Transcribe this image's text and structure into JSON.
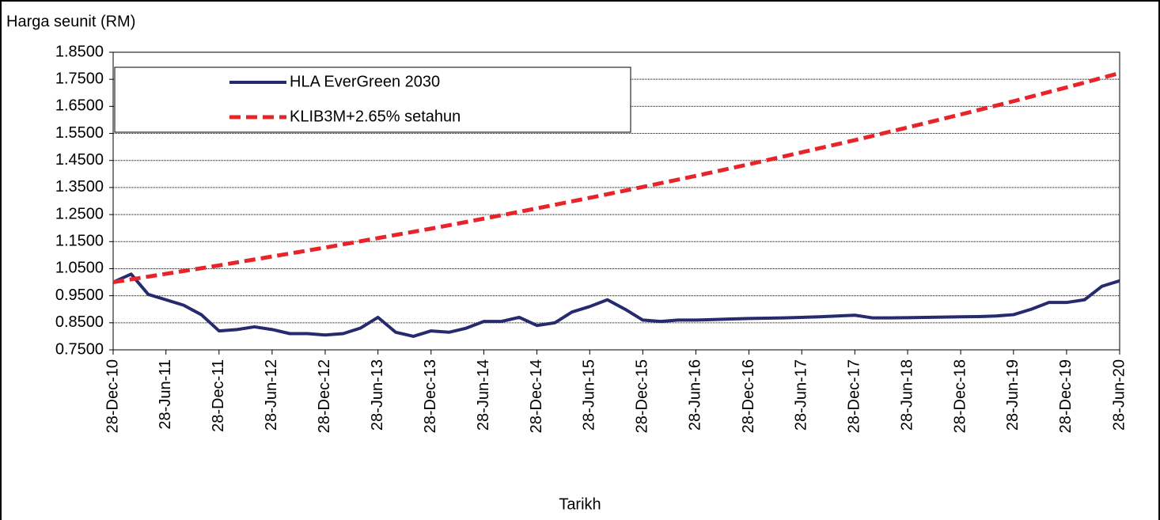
{
  "chart_data": {
    "type": "line",
    "ylabel": "Harga seunit (RM)",
    "xlabel": "Tarikh",
    "xlim": [
      "2010-12-28",
      "2020-06-28"
    ],
    "xticks": [
      {
        "value": "2010-12-28",
        "label": "28-Dec-10"
      },
      {
        "value": "2011-06-28",
        "label": "28-Jun-11"
      },
      {
        "value": "2011-12-28",
        "label": "28-Dec-11"
      },
      {
        "value": "2012-06-28",
        "label": "28-Jun-12"
      },
      {
        "value": "2012-12-28",
        "label": "28-Dec-12"
      },
      {
        "value": "2013-06-28",
        "label": "28-Jun-13"
      },
      {
        "value": "2013-12-28",
        "label": "28-Dec-13"
      },
      {
        "value": "2014-06-28",
        "label": "28-Jun-14"
      },
      {
        "value": "2014-12-28",
        "label": "28-Dec-14"
      },
      {
        "value": "2015-06-28",
        "label": "28-Jun-15"
      },
      {
        "value": "2015-12-28",
        "label": "28-Dec-15"
      },
      {
        "value": "2016-06-28",
        "label": "28-Jun-16"
      },
      {
        "value": "2016-12-28",
        "label": "28-Dec-16"
      },
      {
        "value": "2017-06-28",
        "label": "28-Jun-17"
      },
      {
        "value": "2017-12-28",
        "label": "28-Dec-17"
      },
      {
        "value": "2018-06-28",
        "label": "28-Jun-18"
      },
      {
        "value": "2018-12-28",
        "label": "28-Dec-18"
      },
      {
        "value": "2019-06-28",
        "label": "28-Jun-19"
      },
      {
        "value": "2019-12-28",
        "label": "28-Dec-19"
      },
      {
        "value": "2020-06-28",
        "label": "28-Jun-20"
      }
    ],
    "ylim": [
      0.75,
      1.85
    ],
    "yticks": [
      {
        "value": 0.75,
        "label": "0.7500"
      },
      {
        "value": 0.85,
        "label": "0.8500"
      },
      {
        "value": 0.95,
        "label": "0.9500"
      },
      {
        "value": 1.05,
        "label": "1.0500"
      },
      {
        "value": 1.15,
        "label": "1.1500"
      },
      {
        "value": 1.25,
        "label": "1.2500"
      },
      {
        "value": 1.35,
        "label": "1.3500"
      },
      {
        "value": 1.45,
        "label": "1.4500"
      },
      {
        "value": 1.55,
        "label": "1.5500"
      },
      {
        "value": 1.65,
        "label": "1.6500"
      },
      {
        "value": 1.75,
        "label": "1.7500"
      },
      {
        "value": 1.85,
        "label": "1.8500"
      }
    ],
    "grid": true,
    "legend": "upper left",
    "series": [
      {
        "name": "HLA EverGreen 2030",
        "color": "#262a6e",
        "style": "solid",
        "x": [
          "2010-12-28",
          "2011-02-28",
          "2011-04-28",
          "2011-06-28",
          "2011-08-28",
          "2011-10-28",
          "2011-12-28",
          "2012-02-28",
          "2012-04-28",
          "2012-06-28",
          "2012-08-28",
          "2012-10-28",
          "2012-12-28",
          "2013-02-28",
          "2013-04-28",
          "2013-06-28",
          "2013-08-28",
          "2013-10-28",
          "2013-12-28",
          "2014-02-28",
          "2014-04-28",
          "2014-06-28",
          "2014-08-28",
          "2014-10-28",
          "2014-12-28",
          "2015-02-28",
          "2015-04-28",
          "2015-06-28",
          "2015-08-28",
          "2015-10-28",
          "2015-12-28",
          "2016-02-28",
          "2016-04-28",
          "2016-06-28",
          "2016-08-28",
          "2016-10-28",
          "2016-12-28",
          "2017-02-28",
          "2017-04-28",
          "2017-06-28",
          "2017-08-28",
          "2017-10-28",
          "2017-12-28",
          "2018-02-28",
          "2018-04-28",
          "2018-06-28",
          "2018-08-28",
          "2018-10-28",
          "2018-12-28",
          "2019-02-28",
          "2019-04-28",
          "2019-06-28",
          "2019-08-28",
          "2019-10-28",
          "2019-12-28",
          "2020-02-28",
          "2020-04-28",
          "2020-06-28"
        ],
        "values": [
          1.0,
          1.03,
          0.955,
          0.935,
          0.915,
          0.88,
          0.82,
          0.825,
          0.835,
          0.825,
          0.81,
          0.81,
          0.805,
          0.81,
          0.83,
          0.87,
          0.815,
          0.8,
          0.82,
          0.815,
          0.83,
          0.855,
          0.855,
          0.87,
          0.84,
          0.85,
          0.89,
          0.91,
          0.935,
          0.9,
          0.86,
          0.855,
          0.86,
          0.86,
          0.862,
          0.864,
          0.866,
          0.867,
          0.868,
          0.87,
          0.872,
          0.875,
          0.878,
          0.868,
          0.868,
          0.869,
          0.87,
          0.871,
          0.872,
          0.873,
          0.875,
          0.88,
          0.9,
          0.925,
          0.925,
          0.935,
          0.985,
          1.005
        ]
      },
      {
        "name": "KLIB3M+2.65% setahun",
        "color": "#e8242b",
        "style": "dashed",
        "x": [
          "2010-12-28",
          "2011-06-28",
          "2011-12-28",
          "2012-06-28",
          "2012-12-28",
          "2013-06-28",
          "2013-12-28",
          "2014-06-28",
          "2014-12-28",
          "2015-06-28",
          "2015-12-28",
          "2016-06-28",
          "2016-12-28",
          "2017-06-28",
          "2017-12-28",
          "2018-06-28",
          "2018-12-28",
          "2019-06-28",
          "2019-12-28",
          "2020-06-28"
        ],
        "values": [
          1.0,
          1.031,
          1.062,
          1.095,
          1.128,
          1.163,
          1.198,
          1.235,
          1.273,
          1.312,
          1.352,
          1.393,
          1.436,
          1.48,
          1.525,
          1.572,
          1.62,
          1.669,
          1.72,
          1.773
        ]
      }
    ]
  }
}
